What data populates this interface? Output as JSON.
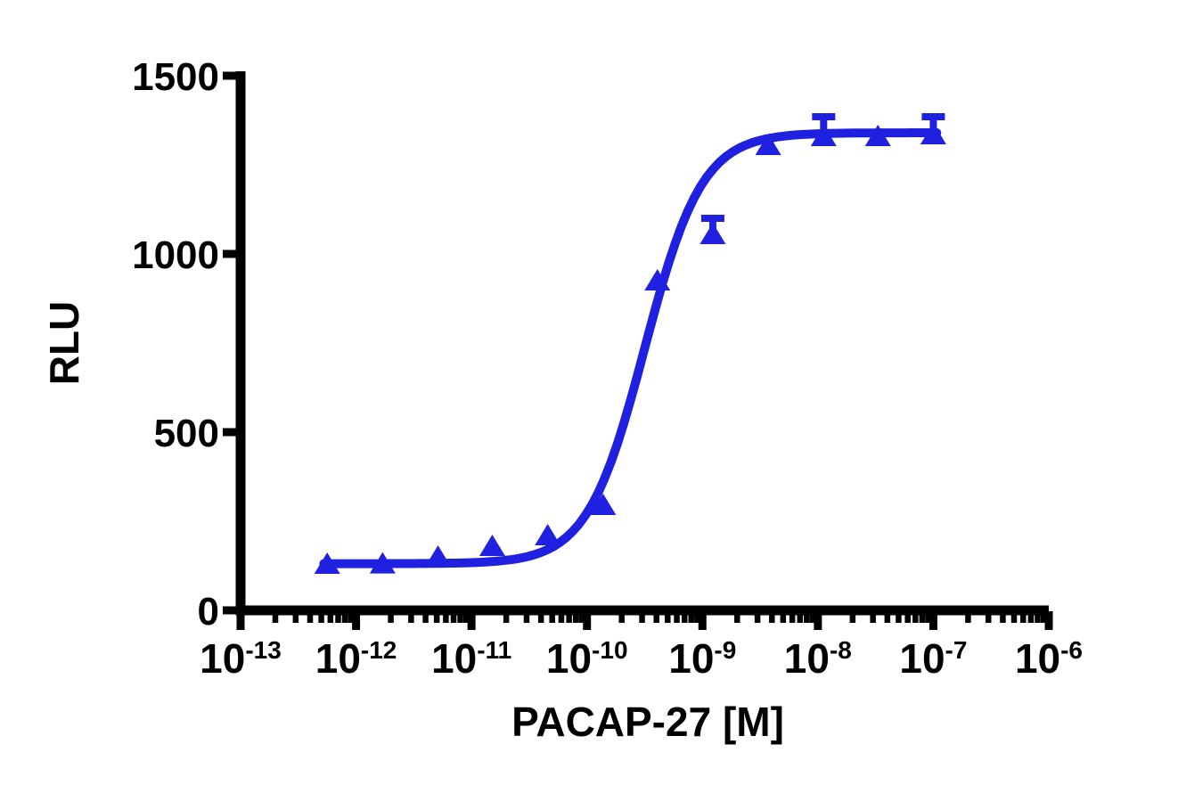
{
  "figure": {
    "background_color": "#ffffff",
    "axis_color": "#000000",
    "accent_color": "#2020E0"
  },
  "chart_data": {
    "type": "scatter",
    "title": "",
    "xlabel": "PACAP-27 [M]",
    "ylabel": "RLU",
    "x_scale": "log10",
    "xlim_log10": [
      -13,
      -6
    ],
    "ylim": [
      0,
      1500
    ],
    "grid": false,
    "legend": null,
    "y_ticks": [
      {
        "value": 0,
        "label": "0"
      },
      {
        "value": 500,
        "label": "500"
      },
      {
        "value": 1000,
        "label": "1000"
      },
      {
        "value": 1500,
        "label": "1500"
      }
    ],
    "x_major_ticks": [
      {
        "log10": -13,
        "base": "10",
        "exp": "-13"
      },
      {
        "log10": -12,
        "base": "10",
        "exp": "-12"
      },
      {
        "log10": -11,
        "base": "10",
        "exp": "-11"
      },
      {
        "log10": -10,
        "base": "10",
        "exp": "-10"
      },
      {
        "log10": -9,
        "base": "10",
        "exp": "-9"
      },
      {
        "log10": -8,
        "base": "10",
        "exp": "-8"
      },
      {
        "log10": -7,
        "base": "10",
        "exp": "-7"
      },
      {
        "log10": -6,
        "base": "10",
        "exp": "-6"
      }
    ],
    "x_minor_tick_mantissas": [
      2,
      3,
      4,
      5,
      6,
      7,
      8,
      9
    ],
    "series": [
      {
        "name": "PACAP-27",
        "marker": "triangle-up",
        "color": "#2020E0",
        "points": [
          {
            "conc": "5.6e-13",
            "log10_conc": -12.25,
            "rlu": 130,
            "err_up": null
          },
          {
            "conc": "1.7e-12",
            "log10_conc": -11.77,
            "rlu": 131,
            "err_up": null
          },
          {
            "conc": "5.1e-12",
            "log10_conc": -11.29,
            "rlu": 150,
            "err_up": null
          },
          {
            "conc": "1.5e-11",
            "log10_conc": -10.82,
            "rlu": 180,
            "err_up": null
          },
          {
            "conc": "4.6e-11",
            "log10_conc": -10.34,
            "rlu": 210,
            "err_up": null
          },
          {
            "conc": "1.4e-10",
            "log10_conc": -9.86,
            "rlu": 295,
            "err_up": null
          },
          {
            "conc": "4.1e-10",
            "log10_conc": -9.39,
            "rlu": 925,
            "err_up": null
          },
          {
            "conc": "1.2e-9",
            "log10_conc": -8.91,
            "rlu": 1055,
            "err_up": 55
          },
          {
            "conc": "3.7e-9",
            "log10_conc": -8.43,
            "rlu": 1305,
            "err_up": null
          },
          {
            "conc": "1.1e-8",
            "log10_conc": -7.95,
            "rlu": 1330,
            "err_up": 65
          },
          {
            "conc": "3.3e-8",
            "log10_conc": -7.48,
            "rlu": 1330,
            "err_up": null
          },
          {
            "conc": "1.0e-7",
            "log10_conc": -7.0,
            "rlu": 1335,
            "err_up": 60
          }
        ],
        "fit": {
          "model": "4PL-sigmoid",
          "bottom": 131,
          "top": 1340,
          "log10_ec50": -9.5,
          "hill": 1.75,
          "curve_range_log10": [
            -12.28,
            -6.97
          ]
        }
      }
    ]
  }
}
